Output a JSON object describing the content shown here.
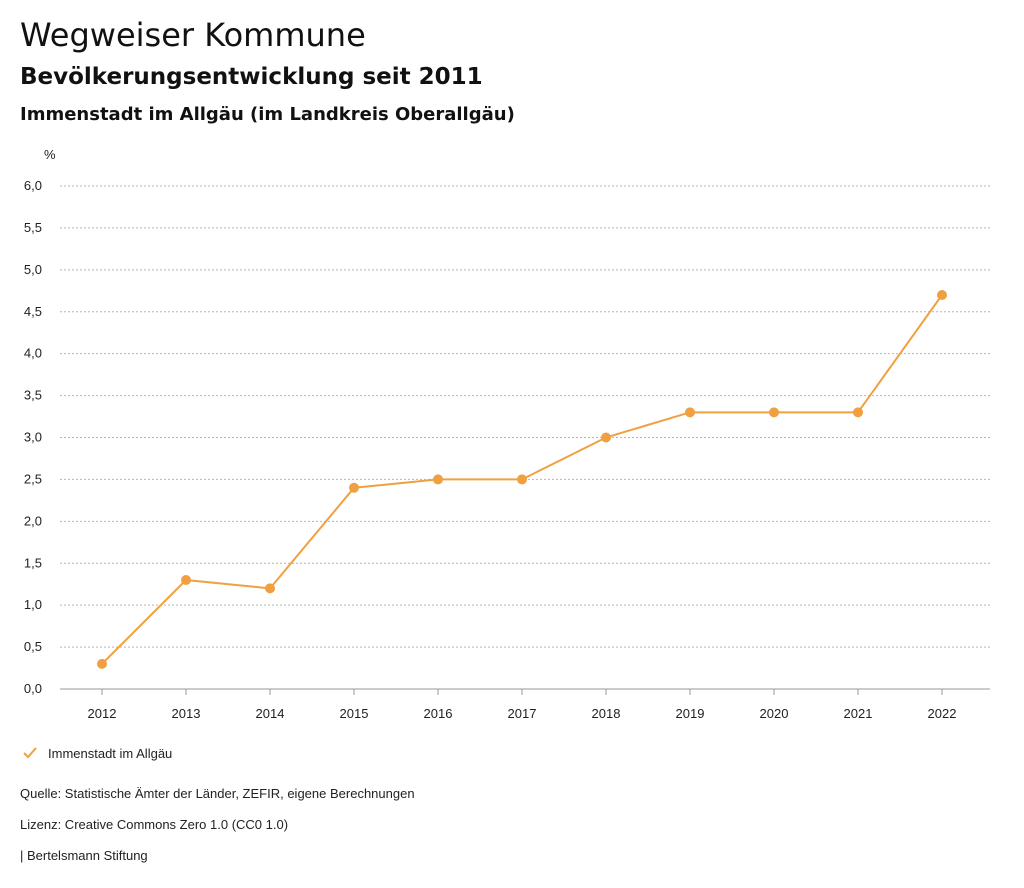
{
  "header": {
    "title": "Wegweiser Kommune",
    "subtitle": "Bevölkerungsentwicklung seit 2011",
    "region": "Immenstadt im Allgäu (im Landkreis Oberallgäu)"
  },
  "chart_data": {
    "type": "line",
    "title": "Bevölkerungsentwicklung seit 2011",
    "xlabel": "",
    "ylabel": "%",
    "categories": [
      "2012",
      "2013",
      "2014",
      "2015",
      "2016",
      "2017",
      "2018",
      "2019",
      "2020",
      "2021",
      "2022"
    ],
    "series": [
      {
        "name": "Immenstadt im Allgäu",
        "values": [
          0.3,
          1.3,
          1.2,
          2.4,
          2.5,
          2.5,
          3.0,
          3.3,
          3.3,
          3.3,
          4.7
        ]
      }
    ],
    "ylim": [
      0,
      6
    ],
    "yticks": [
      "0,0",
      "0,5",
      "1,0",
      "1,5",
      "2,0",
      "2,5",
      "3,0",
      "3,5",
      "4,0",
      "4,5",
      "5,0",
      "5,5",
      "6,0"
    ],
    "grid": true,
    "legend_position": "bottom-left",
    "color": "#f0a040"
  },
  "legend": {
    "label": "Immenstadt im Allgäu",
    "icon": "check-icon"
  },
  "footer": {
    "source": "Quelle: Statistische Ämter der Länder, ZEFIR, eigene Berechnungen",
    "license": "Lizenz: Creative Commons Zero 1.0 (CC0 1.0)",
    "publisher": "| Bertelsmann Stiftung"
  }
}
